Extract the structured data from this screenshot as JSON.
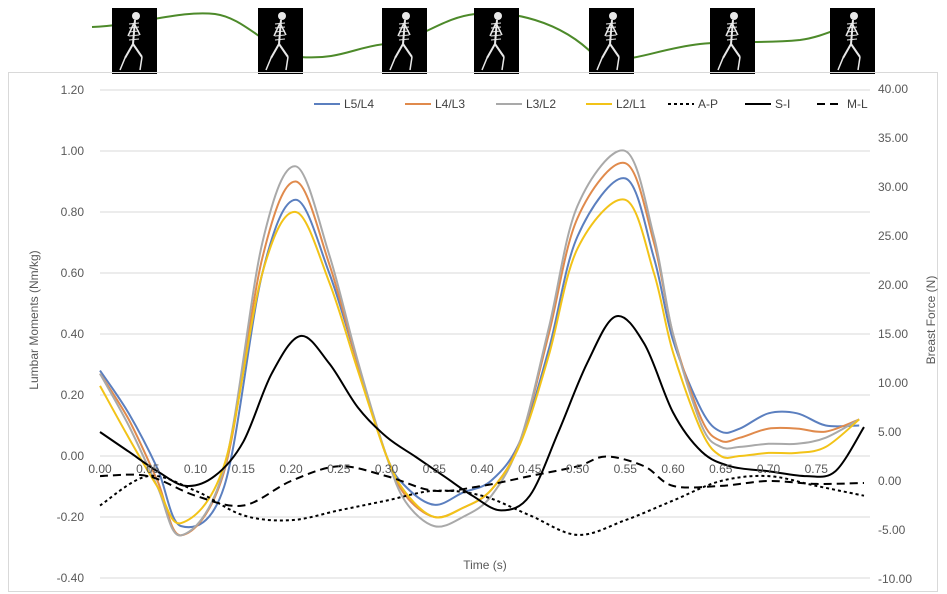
{
  "header_strip": {
    "skeleton_count": 7,
    "trajectory_color": "#4d8a2a"
  },
  "chart_data": {
    "type": "line",
    "title": "",
    "xlabel": "Time (s)",
    "ylabel_left": "Lumbar Moments (Nm/kg)",
    "ylabel_right": "Breast Force (N)",
    "xlim": [
      0,
      0.8
    ],
    "ylim_left": [
      -0.4,
      1.2
    ],
    "ylim_right": [
      -10,
      40
    ],
    "x_ticks": [
      "0.00",
      "0.05",
      "0.10",
      "0.15",
      "0.20",
      "0.25",
      "0.30",
      "0.35",
      "0.40",
      "0.45",
      "0.50",
      "0.55",
      "0.60",
      "0.65",
      "0.70",
      "0.75"
    ],
    "y_left_ticks": [
      "-0.40",
      "-0.20",
      "0.00",
      "0.20",
      "0.40",
      "0.60",
      "0.80",
      "1.00",
      "1.20"
    ],
    "y_right_ticks": [
      "-10.00",
      "-5.00",
      "0.00",
      "5.00",
      "10.00",
      "15.00",
      "20.00",
      "25.00",
      "30.00",
      "35.00",
      "40.00"
    ],
    "grid": "horizontal",
    "legend_position": "top-right",
    "series": [
      {
        "name": "L5/L4",
        "axis": "left",
        "color": "#5b7fbf",
        "style": "solid",
        "x": [
          0.0,
          0.03,
          0.06,
          0.085,
          0.13,
          0.17,
          0.205,
          0.24,
          0.27,
          0.3,
          0.32,
          0.35,
          0.38,
          0.41,
          0.44,
          0.47,
          0.5,
          0.55,
          0.58,
          0.6,
          0.63,
          0.65,
          0.67,
          0.7,
          0.73,
          0.76,
          0.795
        ],
        "y": [
          0.28,
          0.14,
          -0.04,
          -0.23,
          -0.1,
          0.6,
          0.84,
          0.6,
          0.3,
          0.0,
          -0.1,
          -0.16,
          -0.12,
          -0.08,
          0.05,
          0.35,
          0.72,
          0.91,
          0.65,
          0.38,
          0.15,
          0.08,
          0.09,
          0.14,
          0.14,
          0.1,
          0.1
        ]
      },
      {
        "name": "L4/L3",
        "axis": "left",
        "color": "#e08a4c",
        "style": "solid",
        "x": [
          0.0,
          0.03,
          0.06,
          0.085,
          0.13,
          0.17,
          0.205,
          0.24,
          0.27,
          0.3,
          0.32,
          0.35,
          0.38,
          0.41,
          0.44,
          0.47,
          0.5,
          0.55,
          0.58,
          0.6,
          0.63,
          0.65,
          0.67,
          0.7,
          0.73,
          0.76,
          0.795
        ],
        "y": [
          0.27,
          0.12,
          -0.08,
          -0.26,
          -0.05,
          0.65,
          0.9,
          0.63,
          0.3,
          0.0,
          -0.13,
          -0.2,
          -0.17,
          -0.11,
          0.05,
          0.4,
          0.78,
          0.96,
          0.7,
          0.4,
          0.12,
          0.05,
          0.06,
          0.09,
          0.09,
          0.08,
          0.12
        ]
      },
      {
        "name": "L3/L2",
        "axis": "left",
        "color": "#a9a9a9",
        "style": "solid",
        "x": [
          0.0,
          0.03,
          0.06,
          0.085,
          0.13,
          0.17,
          0.205,
          0.24,
          0.27,
          0.3,
          0.32,
          0.35,
          0.38,
          0.41,
          0.44,
          0.47,
          0.5,
          0.55,
          0.58,
          0.6,
          0.63,
          0.65,
          0.67,
          0.7,
          0.73,
          0.76,
          0.795
        ],
        "y": [
          0.27,
          0.1,
          -0.1,
          -0.26,
          -0.04,
          0.7,
          0.95,
          0.66,
          0.31,
          0.0,
          -0.15,
          -0.23,
          -0.2,
          -0.13,
          0.05,
          0.42,
          0.82,
          1.0,
          0.72,
          0.4,
          0.1,
          0.03,
          0.03,
          0.04,
          0.04,
          0.06,
          0.12
        ]
      },
      {
        "name": "L2/L1",
        "axis": "left",
        "color": "#f2c318",
        "style": "solid",
        "x": [
          0.0,
          0.03,
          0.06,
          0.085,
          0.13,
          0.17,
          0.205,
          0.24,
          0.27,
          0.3,
          0.32,
          0.35,
          0.38,
          0.41,
          0.44,
          0.47,
          0.5,
          0.55,
          0.58,
          0.6,
          0.63,
          0.65,
          0.67,
          0.7,
          0.73,
          0.76,
          0.795
        ],
        "y": [
          0.23,
          0.06,
          -0.1,
          -0.22,
          -0.03,
          0.6,
          0.8,
          0.57,
          0.28,
          0.0,
          -0.12,
          -0.2,
          -0.17,
          -0.11,
          0.04,
          0.33,
          0.68,
          0.84,
          0.6,
          0.34,
          0.08,
          0.0,
          0.0,
          0.01,
          0.01,
          0.03,
          0.12
        ]
      },
      {
        "name": "A-P",
        "axis": "right",
        "color": "#000000",
        "style": "dotted",
        "x": [
          0.0,
          0.05,
          0.1,
          0.15,
          0.2,
          0.25,
          0.3,
          0.35,
          0.4,
          0.45,
          0.5,
          0.55,
          0.6,
          0.65,
          0.7,
          0.75,
          0.8
        ],
        "y": [
          -2.5,
          0.5,
          -1.0,
          -3.5,
          -4.0,
          -3.0,
          -2.0,
          -1.0,
          -1.5,
          -3.5,
          -5.5,
          -4.0,
          -2.0,
          0.0,
          0.5,
          -0.5,
          -1.5
        ]
      },
      {
        "name": "S-I",
        "axis": "right",
        "color": "#000000",
        "style": "solid",
        "x": [
          0.0,
          0.03,
          0.06,
          0.09,
          0.12,
          0.15,
          0.18,
          0.21,
          0.24,
          0.27,
          0.3,
          0.33,
          0.36,
          0.39,
          0.42,
          0.45,
          0.48,
          0.51,
          0.54,
          0.57,
          0.6,
          0.63,
          0.66,
          0.7,
          0.74,
          0.77,
          0.8
        ],
        "y": [
          5.0,
          3.0,
          1.0,
          -0.5,
          0.5,
          4.0,
          11.0,
          14.8,
          12.0,
          7.5,
          4.5,
          2.5,
          0.5,
          -1.5,
          -3.0,
          -1.5,
          5.0,
          12.0,
          16.8,
          14.0,
          7.0,
          3.0,
          1.5,
          1.0,
          0.5,
          1.0,
          5.5
        ]
      },
      {
        "name": "M-L",
        "axis": "right",
        "color": "#000000",
        "style": "dashed",
        "x": [
          0.0,
          0.05,
          0.1,
          0.15,
          0.2,
          0.25,
          0.3,
          0.35,
          0.4,
          0.45,
          0.5,
          0.53,
          0.57,
          0.6,
          0.65,
          0.7,
          0.75,
          0.8
        ],
        "y": [
          0.5,
          0.5,
          -1.5,
          -2.5,
          0.0,
          1.5,
          0.5,
          -1.0,
          -0.5,
          0.5,
          1.5,
          2.5,
          1.5,
          -0.5,
          -0.5,
          0.0,
          -0.3,
          -0.2
        ]
      }
    ]
  }
}
